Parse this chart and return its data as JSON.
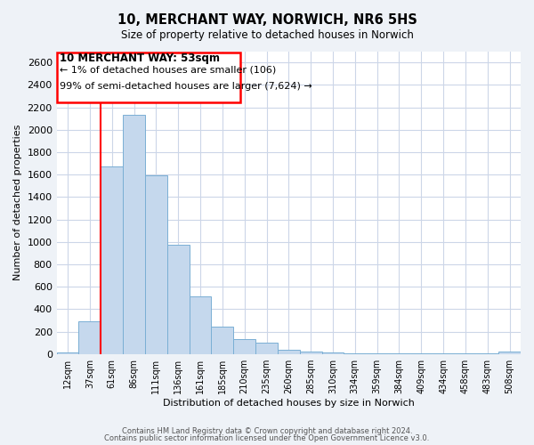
{
  "title": "10, MERCHANT WAY, NORWICH, NR6 5HS",
  "subtitle": "Size of property relative to detached houses in Norwich",
  "xlabel": "Distribution of detached houses by size in Norwich",
  "ylabel": "Number of detached properties",
  "bar_labels": [
    "12sqm",
    "37sqm",
    "61sqm",
    "86sqm",
    "111sqm",
    "136sqm",
    "161sqm",
    "185sqm",
    "210sqm",
    "235sqm",
    "260sqm",
    "285sqm",
    "310sqm",
    "334sqm",
    "359sqm",
    "384sqm",
    "409sqm",
    "434sqm",
    "458sqm",
    "483sqm",
    "508sqm"
  ],
  "bar_values": [
    15,
    295,
    1670,
    2130,
    1595,
    970,
    510,
    240,
    130,
    100,
    40,
    20,
    10,
    8,
    5,
    5,
    5,
    5,
    5,
    5,
    20
  ],
  "bar_color": "#c5d8ed",
  "bar_edge_color": "#7aafd4",
  "property_line_x": 1.5,
  "property_line_label": "10 MERCHANT WAY: 53sqm",
  "annotation_line1": "← 1% of detached houses are smaller (106)",
  "annotation_line2": "99% of semi-detached houses are larger (7,624) →",
  "ylim": [
    0,
    2700
  ],
  "yticks": [
    0,
    200,
    400,
    600,
    800,
    1000,
    1200,
    1400,
    1600,
    1800,
    2000,
    2200,
    2400,
    2600
  ],
  "footer_line1": "Contains HM Land Registry data © Crown copyright and database right 2024.",
  "footer_line2": "Contains public sector information licensed under the Open Government Licence v3.0.",
  "background_color": "#eef2f7",
  "plot_bg_color": "#ffffff",
  "grid_color": "#ccd6e8"
}
